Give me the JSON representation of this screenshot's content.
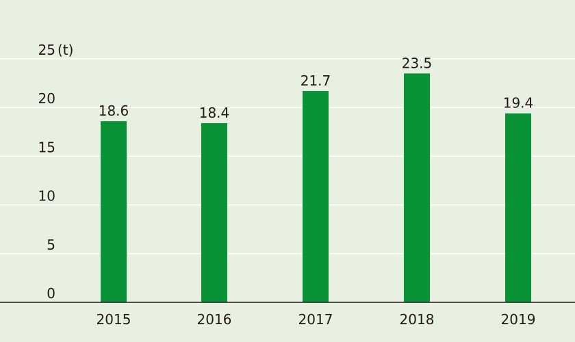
{
  "chart_data": {
    "type": "bar",
    "title": "",
    "xlabel": "",
    "ylabel": "",
    "unit_label": "(t)",
    "categories": [
      "2015",
      "2016",
      "2017",
      "2018",
      "2019"
    ],
    "values": [
      18.6,
      18.4,
      21.7,
      23.5,
      19.4
    ],
    "value_labels": [
      "18.6",
      "18.4",
      "21.7",
      "23.5",
      "19.4"
    ],
    "yticks": [
      "0",
      "5",
      "10",
      "15",
      "20",
      "25"
    ],
    "ylim": [
      0,
      25
    ],
    "grid": true,
    "colors": {
      "bar": "#0a9237",
      "grid": "#ffffff",
      "axis": "#231815",
      "background": "#e8f1e1"
    }
  }
}
